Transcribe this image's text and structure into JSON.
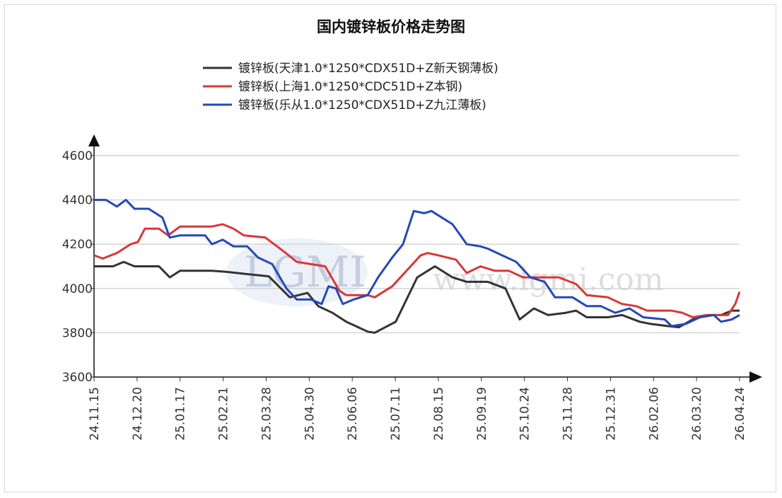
{
  "chart_data": {
    "type": "line",
    "title": "国内镀锌板价格走势图",
    "xlabel": "",
    "ylabel": "",
    "ylim": [
      3600,
      4600
    ],
    "yticks": [
      3600,
      3800,
      4000,
      4200,
      4400,
      4600
    ],
    "xticks": [
      "24.11.15",
      "24.12.20",
      "25.01.17",
      "25.02.21",
      "25.03.28",
      "25.04.30",
      "25.06.06",
      "25.07.11",
      "25.08.15",
      "25.09.19",
      "25.10.24",
      "25.11.28",
      "25.12.31",
      "26.02.06",
      "26.03.20",
      "26.04.24"
    ],
    "x_units": "tick index (0 = 24.11.15, 15 = 26.04.24)",
    "grid": true,
    "legend_position": "top-center",
    "watermark": "LGMI www.lgmi.com",
    "series": [
      {
        "name": "镀锌板(天津1.0*1250*CDX51D+Z新天钢薄板)",
        "color": "#333333",
        "points": [
          [
            0,
            4100
          ],
          [
            0.44,
            4100
          ],
          [
            0.69,
            4120
          ],
          [
            0.94,
            4100
          ],
          [
            1.51,
            4100
          ],
          [
            1.76,
            4050
          ],
          [
            2.0,
            4080
          ],
          [
            2.74,
            4080
          ],
          [
            3.07,
            4075
          ],
          [
            3.56,
            4065
          ],
          [
            4.06,
            4055
          ],
          [
            4.55,
            3960
          ],
          [
            4.96,
            3980
          ],
          [
            5.21,
            3920
          ],
          [
            5.54,
            3890
          ],
          [
            5.86,
            3850
          ],
          [
            6.36,
            3805
          ],
          [
            6.52,
            3800
          ],
          [
            7.01,
            3850
          ],
          [
            7.51,
            4050
          ],
          [
            7.92,
            4100
          ],
          [
            8.33,
            4050
          ],
          [
            8.66,
            4030
          ],
          [
            9.15,
            4030
          ],
          [
            9.56,
            4000
          ],
          [
            9.89,
            3860
          ],
          [
            10.22,
            3910
          ],
          [
            10.55,
            3880
          ],
          [
            10.96,
            3890
          ],
          [
            11.2,
            3900
          ],
          [
            11.45,
            3870
          ],
          [
            11.94,
            3870
          ],
          [
            12.27,
            3880
          ],
          [
            12.68,
            3850
          ],
          [
            12.93,
            3840
          ],
          [
            13.34,
            3830
          ],
          [
            13.59,
            3825
          ],
          [
            13.91,
            3860
          ],
          [
            14.24,
            3880
          ],
          [
            14.57,
            3880
          ],
          [
            14.82,
            3900
          ],
          [
            15,
            3900
          ]
        ]
      },
      {
        "name": "镀锌板(上海1.0*1250*CDC51D+Z本钢)",
        "color": "#d9373a",
        "points": [
          [
            0,
            4150
          ],
          [
            0.2,
            4135
          ],
          [
            0.53,
            4160
          ],
          [
            0.85,
            4200
          ],
          [
            1.02,
            4210
          ],
          [
            1.18,
            4270
          ],
          [
            1.51,
            4270
          ],
          [
            1.72,
            4240
          ],
          [
            2.0,
            4280
          ],
          [
            2.74,
            4280
          ],
          [
            2.99,
            4290
          ],
          [
            3.24,
            4270
          ],
          [
            3.48,
            4240
          ],
          [
            3.98,
            4230
          ],
          [
            4.39,
            4170
          ],
          [
            4.71,
            4120
          ],
          [
            5.04,
            4110
          ],
          [
            5.37,
            4100
          ],
          [
            5.7,
            3990
          ],
          [
            5.86,
            3970
          ],
          [
            6.36,
            3970
          ],
          [
            6.52,
            3960
          ],
          [
            6.93,
            4010
          ],
          [
            7.26,
            4080
          ],
          [
            7.59,
            4150
          ],
          [
            7.75,
            4160
          ],
          [
            8.0,
            4150
          ],
          [
            8.41,
            4130
          ],
          [
            8.66,
            4070
          ],
          [
            8.98,
            4100
          ],
          [
            9.31,
            4080
          ],
          [
            9.64,
            4080
          ],
          [
            9.97,
            4050
          ],
          [
            10.47,
            4050
          ],
          [
            10.8,
            4050
          ],
          [
            11.2,
            4020
          ],
          [
            11.45,
            3970
          ],
          [
            11.94,
            3960
          ],
          [
            12.27,
            3930
          ],
          [
            12.6,
            3920
          ],
          [
            12.85,
            3900
          ],
          [
            13.42,
            3900
          ],
          [
            13.67,
            3890
          ],
          [
            13.91,
            3870
          ],
          [
            14.24,
            3880
          ],
          [
            14.73,
            3880
          ],
          [
            14.9,
            3930
          ],
          [
            15,
            3985
          ]
        ]
      },
      {
        "name": "镀锌板(乐从1.0*1250*CDX51D+Z九江薄板)",
        "color": "#2448b8",
        "points": [
          [
            0,
            4400
          ],
          [
            0.28,
            4400
          ],
          [
            0.53,
            4370
          ],
          [
            0.74,
            4400
          ],
          [
            0.94,
            4360
          ],
          [
            1.27,
            4360
          ],
          [
            1.59,
            4320
          ],
          [
            1.76,
            4230
          ],
          [
            2.0,
            4240
          ],
          [
            2.58,
            4240
          ],
          [
            2.74,
            4200
          ],
          [
            2.99,
            4220
          ],
          [
            3.24,
            4190
          ],
          [
            3.56,
            4190
          ],
          [
            3.81,
            4140
          ],
          [
            4.14,
            4110
          ],
          [
            4.47,
            4000
          ],
          [
            4.71,
            3950
          ],
          [
            5.04,
            3950
          ],
          [
            5.29,
            3930
          ],
          [
            5.45,
            4010
          ],
          [
            5.62,
            4000
          ],
          [
            5.78,
            3930
          ],
          [
            6.03,
            3950
          ],
          [
            6.36,
            3970
          ],
          [
            6.6,
            4050
          ],
          [
            6.93,
            4140
          ],
          [
            7.18,
            4200
          ],
          [
            7.43,
            4350
          ],
          [
            7.67,
            4340
          ],
          [
            7.84,
            4350
          ],
          [
            8.33,
            4290
          ],
          [
            8.66,
            4200
          ],
          [
            8.98,
            4190
          ],
          [
            9.15,
            4180
          ],
          [
            9.48,
            4150
          ],
          [
            9.81,
            4120
          ],
          [
            10.14,
            4050
          ],
          [
            10.47,
            4030
          ],
          [
            10.71,
            3960
          ],
          [
            11.12,
            3960
          ],
          [
            11.45,
            3920
          ],
          [
            11.78,
            3920
          ],
          [
            12.11,
            3890
          ],
          [
            12.44,
            3910
          ],
          [
            12.76,
            3870
          ],
          [
            13.26,
            3860
          ],
          [
            13.42,
            3830
          ],
          [
            13.75,
            3840
          ],
          [
            14.08,
            3870
          ],
          [
            14.4,
            3880
          ],
          [
            14.57,
            3850
          ],
          [
            14.82,
            3860
          ],
          [
            15,
            3880
          ]
        ]
      }
    ]
  }
}
